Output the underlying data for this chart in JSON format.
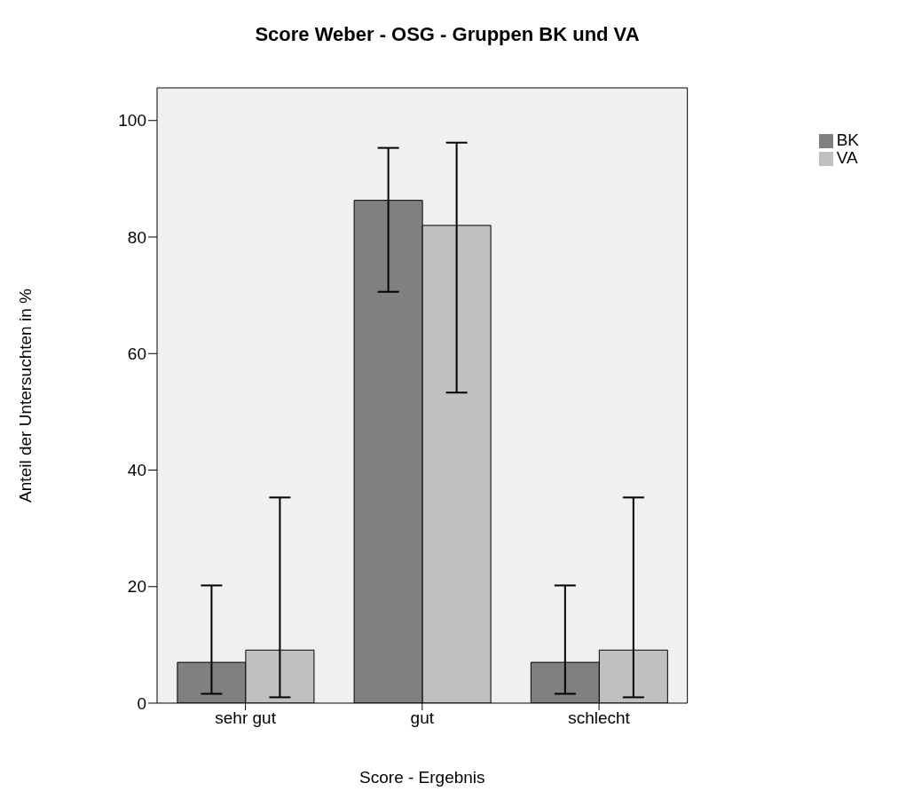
{
  "chart_data": {
    "type": "bar",
    "title": "Score Weber - OSG - Gruppen BK und VA",
    "xlabel": "Score - Ergebnis",
    "ylabel": "Anteil der Untersuchten in %",
    "categories": [
      "sehr gut",
      "gut",
      "schlecht"
    ],
    "series": [
      {
        "name": "BK",
        "color": "#808080",
        "values": [
          7.0,
          86.3,
          7.0
        ],
        "errors": [
          [
            1.6,
            20.2
          ],
          [
            70.6,
            95.3
          ],
          [
            1.6,
            20.2
          ]
        ]
      },
      {
        "name": "VA",
        "color": "#c0c0c0",
        "values": [
          9.1,
          82.0,
          9.1
        ],
        "errors": [
          [
            1.0,
            35.3
          ],
          [
            53.3,
            96.2
          ],
          [
            1.0,
            35.3
          ]
        ]
      }
    ],
    "ylim": [
      0,
      105.6
    ],
    "yticks": [
      0,
      20,
      40,
      60,
      80,
      100
    ],
    "grid": false,
    "legend": "top right"
  }
}
